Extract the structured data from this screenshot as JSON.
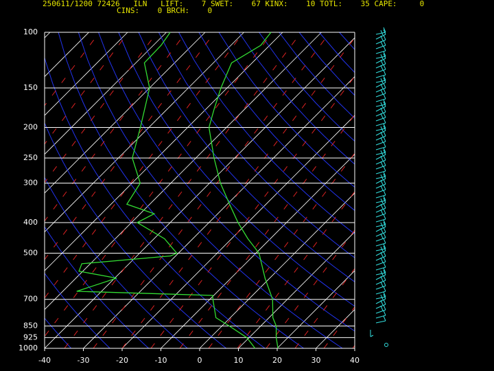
{
  "header": {
    "line1": "250611/1200 72426   ILN   LIFT:    7 SWET:    67 KINX:    10 TOTL:    35 CAPE:     0",
    "line2": "CINS:    0 BRCH:    0"
  },
  "chart_data": {
    "type": "skewt",
    "xlim": [
      -40,
      40
    ],
    "xticks": [
      -40,
      -30,
      -20,
      -10,
      0,
      10,
      20,
      30,
      40
    ],
    "ylim": [
      100,
      1000
    ],
    "yticks": [
      100,
      150,
      200,
      250,
      300,
      400,
      500,
      700,
      850,
      925,
      1000
    ],
    "log_y": true,
    "y_inverted": true,
    "grid": true,
    "series": [
      {
        "color": "#33dd33",
        "pressure": [
          1000,
          925,
          850,
          800,
          700,
          600,
          500,
          450,
          400,
          350,
          300,
          250,
          200,
          175,
          150,
          125,
          110,
          100
        ],
        "values": [
          20.2,
          17.0,
          14.0,
          11.0,
          6.2,
          -1.2,
          -9.2,
          -15.8,
          -22.5,
          -29.4,
          -37.2,
          -45.3,
          -54.5,
          -57.9,
          -61.6,
          -65.3,
          -62.3,
          -63
        ]
      },
      {
        "color": "#33dd33",
        "pressure": [
          1000,
          925,
          850,
          800,
          700,
          680,
          660,
          600,
          570,
          540,
          510,
          500,
          450,
          400,
          375,
          350,
          300,
          250,
          200,
          150,
          125,
          110,
          100
        ],
        "values": [
          14.3,
          9.4,
          1.9,
          -3.7,
          -9.2,
          -10.3,
          -46.4,
          -39.5,
          -51,
          -52.2,
          -31.3,
          -30.4,
          -37.3,
          -48.5,
          -46.4,
          -55.9,
          -57.9,
          -66.4,
          -72.2,
          -80,
          -87.8,
          -88,
          -89
        ]
      }
    ]
  }
}
